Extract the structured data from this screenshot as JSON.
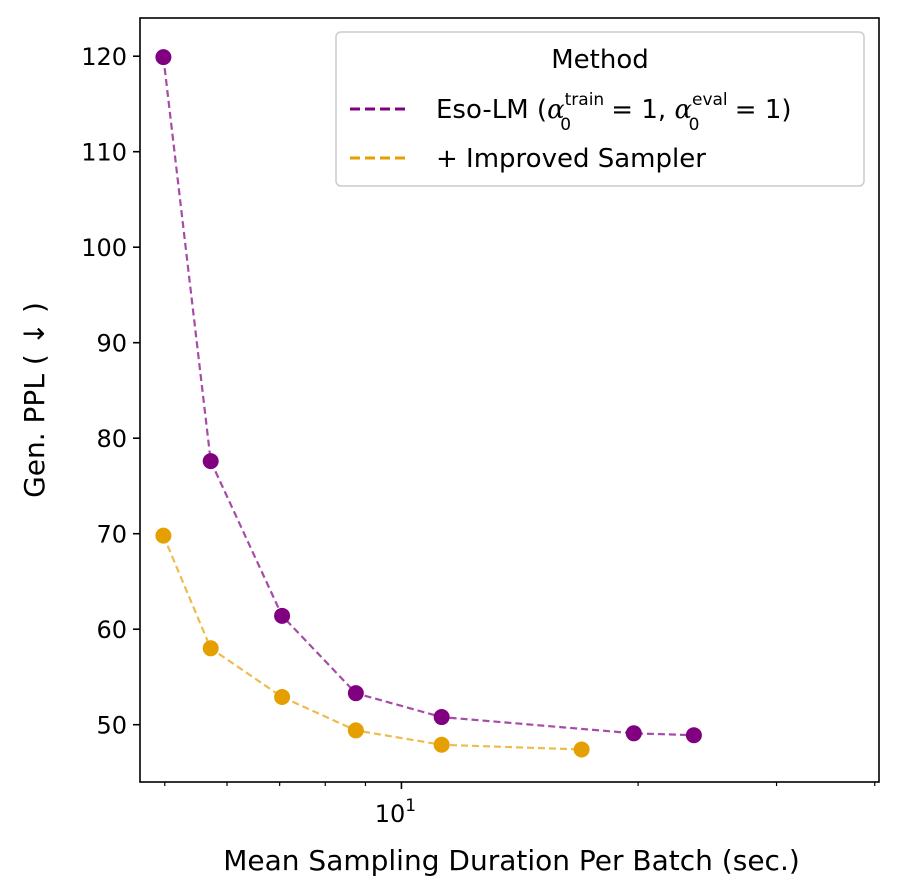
{
  "chart_data": {
    "type": "line",
    "xscale": "log",
    "xlabel": "Mean Sampling Duration Per Batch (sec.)",
    "ylabel": "Gen. PPL ( ↓ )",
    "ylim": [
      44,
      124
    ],
    "xlim": [
      4.65,
      40.5
    ],
    "yticks": [
      50,
      60,
      70,
      80,
      90,
      100,
      110,
      120
    ],
    "xtick_major": [
      {
        "value": 10,
        "base": "10",
        "exp": "1"
      }
    ],
    "xtick_minor": [
      5,
      6,
      7,
      8,
      9,
      20,
      30,
      40
    ],
    "legend": {
      "title": "Method",
      "position": "upper right",
      "entries": [
        {
          "series": 0,
          "prefix": "Eso-LM (",
          "symbol": "α",
          "sub": "0",
          "sup1": "train",
          "mid": " = 1, ",
          "sup2": "eval",
          "suffix": " = 1)"
        },
        {
          "series": 1,
          "text": "+ Improved Sampler"
        }
      ]
    },
    "series": [
      {
        "name": "Eso-LM (α0train = 1, α0eval = 1)",
        "color": "#800080",
        "linestyle": "dashed",
        "x": [
          4.98,
          5.72,
          7.05,
          8.75,
          11.25,
          19.75,
          23.55
        ],
        "y": [
          119.9,
          77.6,
          61.4,
          53.3,
          50.8,
          49.1,
          48.9
        ]
      },
      {
        "name": "+ Improved Sampler",
        "color": "#E69F00",
        "linestyle": "dashed",
        "x": [
          4.98,
          5.72,
          7.05,
          8.75,
          11.25,
          16.95
        ],
        "y": [
          69.8,
          58.0,
          52.9,
          49.4,
          47.9,
          47.4
        ]
      }
    ]
  }
}
